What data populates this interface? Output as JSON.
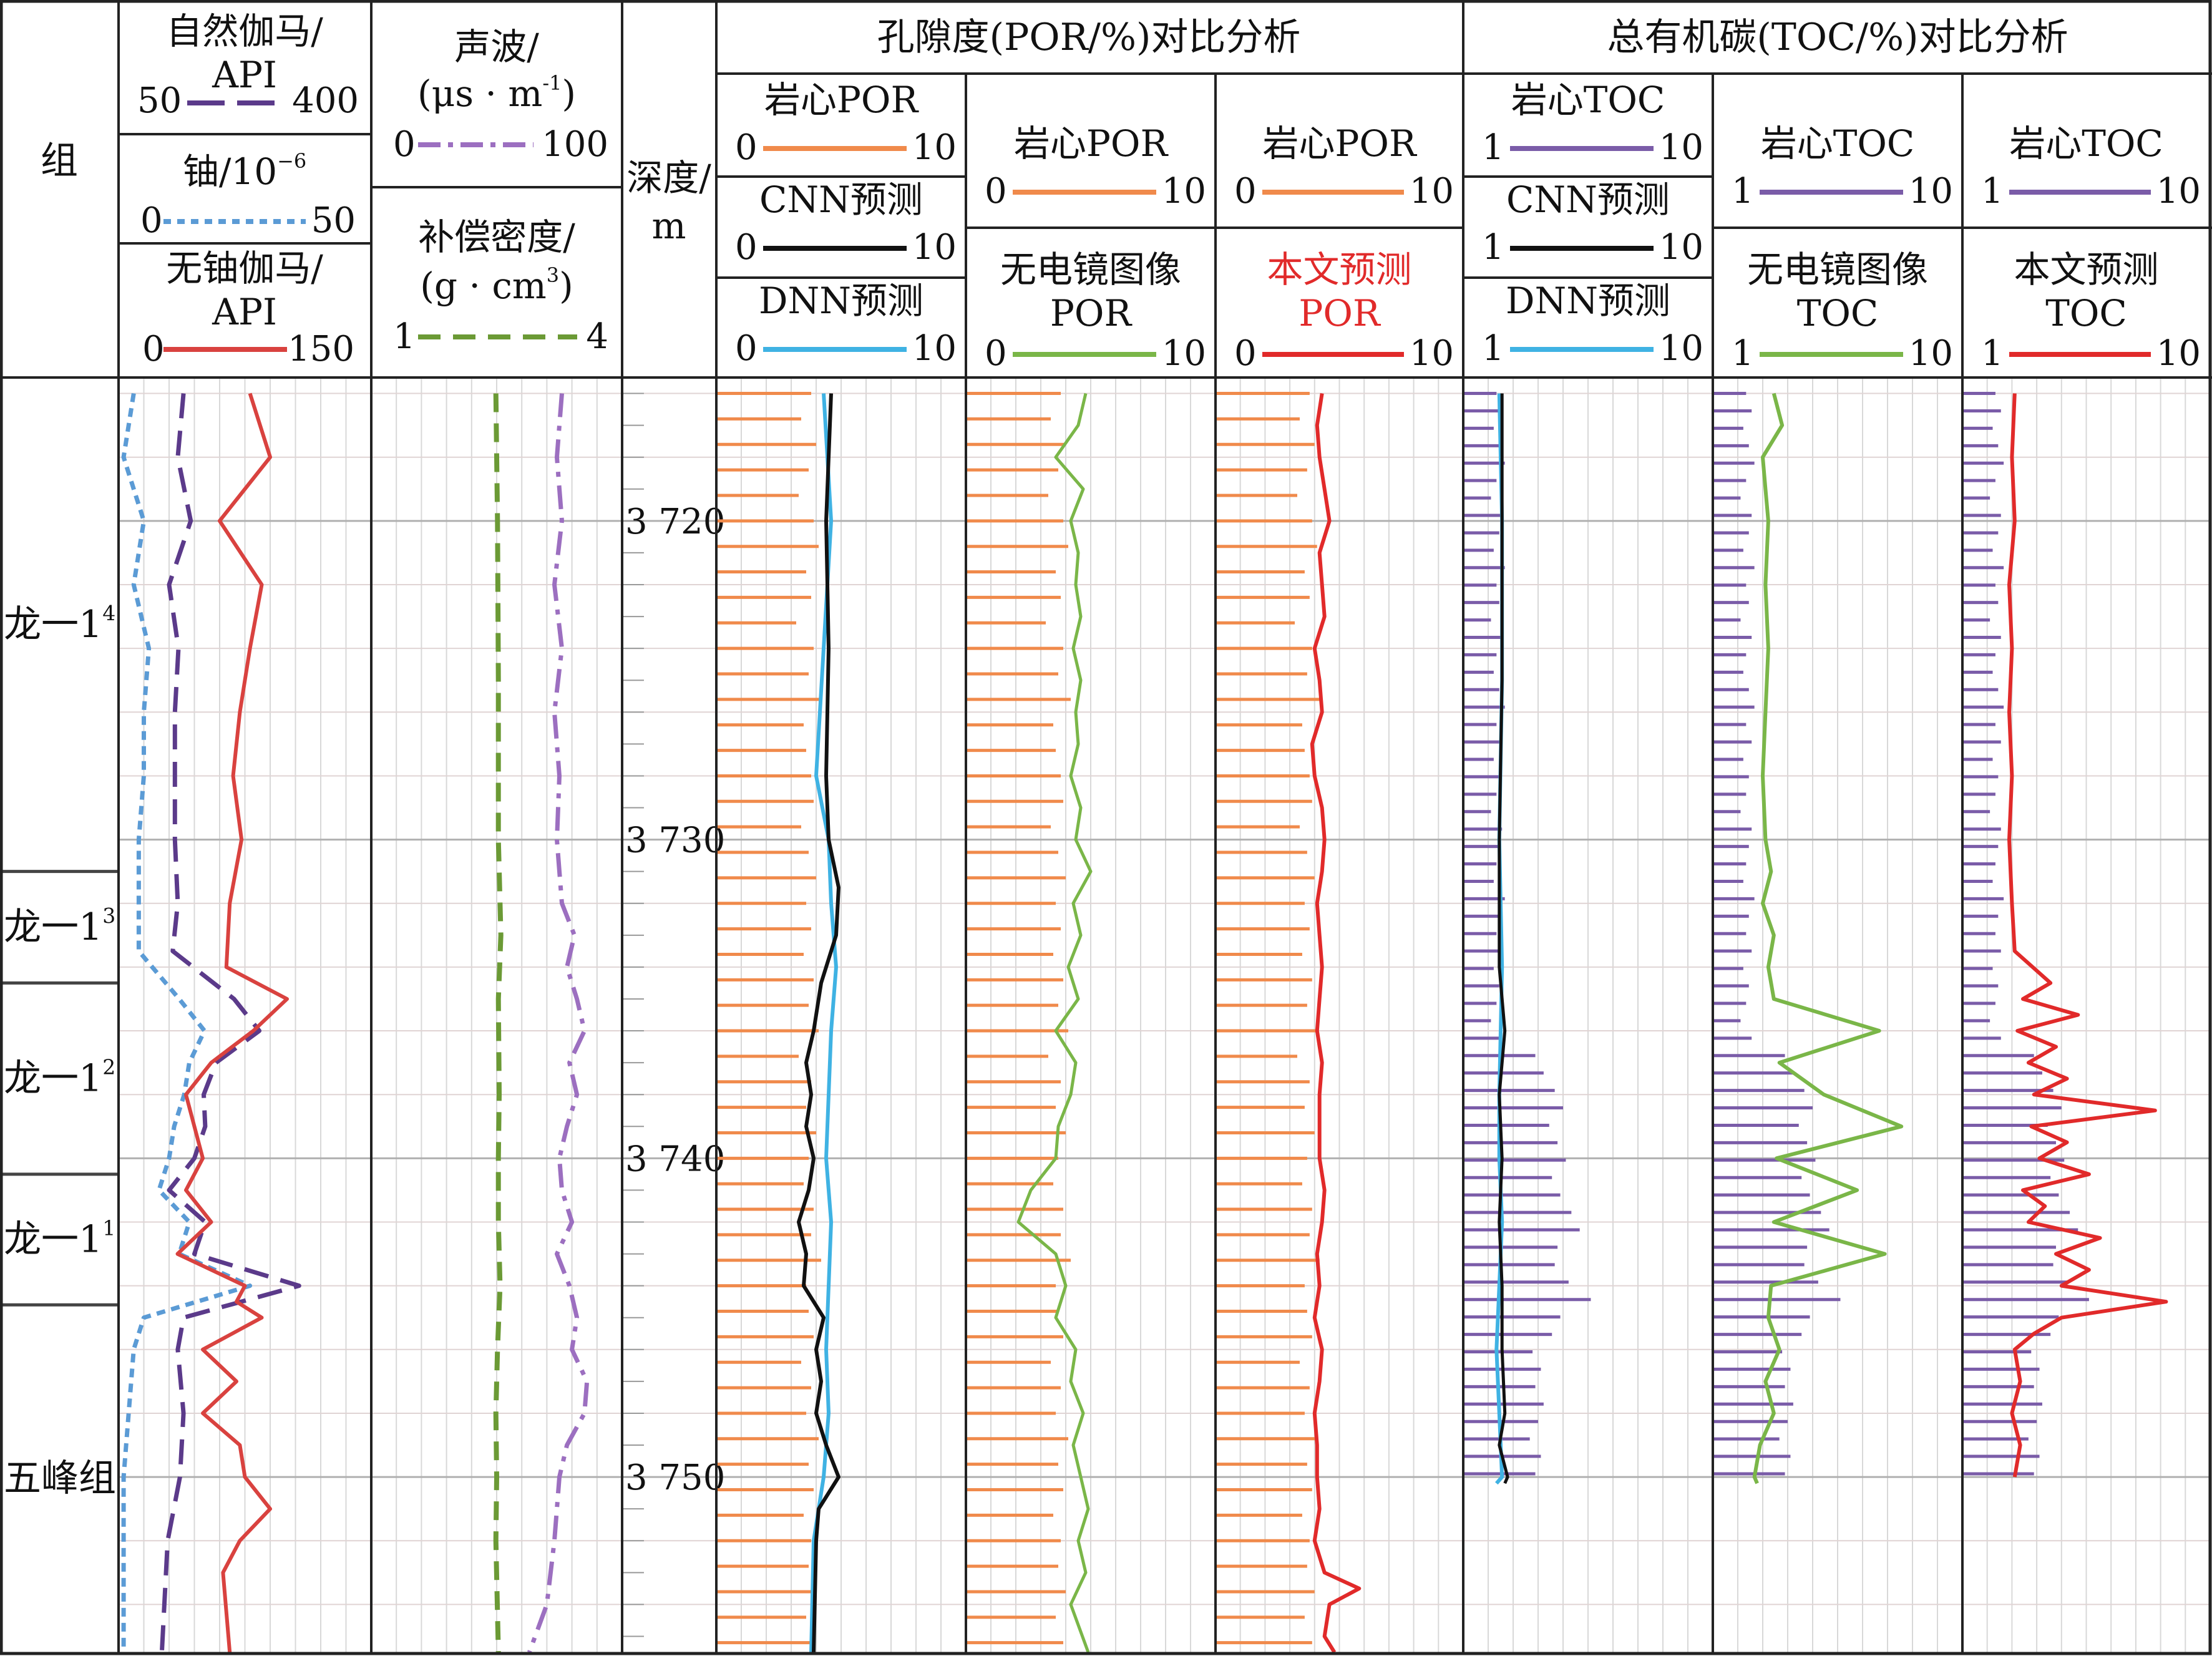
{
  "header": {
    "zone_col": "组",
    "depth_col": [
      "深度/",
      "m"
    ],
    "por_group": "孔隙度(POR/%)对比分析",
    "toc_group": "总有机碳(TOC/%)对比分析"
  },
  "track1": {
    "gr": {
      "label": [
        "自然伽马/",
        "API"
      ],
      "min": "50",
      "max": "400"
    },
    "u": {
      "label": "铀/10",
      "sup": "−6",
      "min": "0",
      "max": "50"
    },
    "kth": {
      "label": [
        "无铀伽马/",
        "API"
      ],
      "min": "0",
      "max": "150"
    }
  },
  "track2": {
    "ac": {
      "label": [
        "声波/",
        "(μs · m",
        ")"
      ],
      "sup": "-1",
      "min": "0",
      "max": "100"
    },
    "den": {
      "label": [
        "补偿密度/",
        "(g · cm",
        ")"
      ],
      "sup": "3",
      "min": "1",
      "max": "4"
    }
  },
  "por_tracks": [
    {
      "lines": [
        {
          "label": "岩心POR",
          "min": "0",
          "max": "10"
        },
        {
          "label": "CNN预测",
          "min": "0",
          "max": "10"
        },
        {
          "label": "DNN预测",
          "min": "0",
          "max": "10"
        }
      ]
    },
    {
      "lines": [
        {
          "label": "岩心POR",
          "min": "0",
          "max": "10"
        },
        {
          "label": [
            "无电镜图像",
            "POR"
          ],
          "min": "0",
          "max": "10"
        }
      ]
    },
    {
      "lines": [
        {
          "label": "岩心POR",
          "min": "0",
          "max": "10"
        },
        {
          "label": [
            "本文预测",
            "POR"
          ],
          "min": "0",
          "max": "10"
        }
      ]
    }
  ],
  "toc_tracks": [
    {
      "lines": [
        {
          "label": "岩心TOC",
          "min": "1",
          "max": "10"
        },
        {
          "label": "CNN预测",
          "min": "1",
          "max": "10"
        },
        {
          "label": "DNN预测",
          "min": "1",
          "max": "10"
        }
      ]
    },
    {
      "lines": [
        {
          "label": "岩心TOC",
          "min": "1",
          "max": "10"
        },
        {
          "label": [
            "无电镜图像",
            "TOC"
          ],
          "min": "1",
          "max": "10"
        }
      ]
    },
    {
      "lines": [
        {
          "label": "岩心TOC",
          "min": "1",
          "max": "10"
        },
        {
          "label": [
            "本文预测",
            "TOC"
          ],
          "min": "1",
          "max": "10"
        }
      ]
    }
  ],
  "zones": [
    {
      "name": "龙一1",
      "sup": "4",
      "top": 3715.5,
      "bottom": 3731.0
    },
    {
      "name": "龙一1",
      "sup": "3",
      "top": 3731.0,
      "bottom": 3734.5
    },
    {
      "name": "龙一1",
      "sup": "2",
      "top": 3734.5,
      "bottom": 3740.5
    },
    {
      "name": "龙一1",
      "sup": "1",
      "top": 3740.5,
      "bottom": 3744.6
    },
    {
      "name": "五峰组",
      "sup": "",
      "top": 3744.6,
      "bottom": 3755.5
    }
  ],
  "colors": {
    "gr": "#5b3a8a",
    "u": "#5b9bd5",
    "kth": "#d9423f",
    "ac": "#9c6fc0",
    "den": "#6b9a35",
    "core_por": "#f08a4b",
    "core_toc": "#7a5ca8",
    "cnn": "#111111",
    "dnn": "#3fb2e3",
    "noimg": "#7ab648",
    "ours": "#e12a2a",
    "red_label": "#e12a2a"
  },
  "chart_data": {
    "type": "line",
    "title": "",
    "ylabel": "深度/m",
    "depth_ticks": [
      "3 720",
      "3 730",
      "3 740",
      "3 750"
    ],
    "depth_tick_values": [
      3720,
      3730,
      3740,
      3750
    ],
    "ylim": [
      3715.5,
      3755.5
    ],
    "curves": {
      "gr": {
        "name": "自然伽马",
        "xlim": [
          50,
          400
        ],
        "depth": [
          3716,
          3718,
          3720,
          3722,
          3724,
          3726,
          3728,
          3730,
          3732,
          3733.5,
          3735,
          3736,
          3737,
          3738,
          3739,
          3740,
          3741,
          3742,
          3743,
          3744,
          3745,
          3746,
          3748,
          3750,
          3752,
          3755.5
        ],
        "values": [
          140,
          132,
          150,
          120,
          133,
          128,
          128,
          128,
          132,
          125,
          210,
          245,
          185,
          168,
          170,
          155,
          120,
          170,
          155,
          300,
          140,
          132,
          140,
          135,
          118,
          110
        ]
      },
      "u": {
        "name": "铀",
        "xlim": [
          0,
          50
        ],
        "depth": [
          3716,
          3718,
          3720,
          3722,
          3724,
          3726,
          3728,
          3730,
          3732,
          3733.5,
          3735,
          3736,
          3737,
          3738,
          3739,
          3740,
          3741,
          3742,
          3743,
          3744,
          3745,
          3746,
          3748,
          3750,
          3752,
          3755.5
        ],
        "values": [
          3,
          1,
          5,
          3,
          6,
          5,
          5,
          4,
          4,
          4,
          12,
          17,
          14,
          13,
          11,
          10,
          8,
          14,
          12,
          26,
          5,
          3,
          2,
          1,
          1,
          1
        ]
      },
      "kth": {
        "name": "无铀伽马",
        "xlim": [
          0,
          150
        ],
        "depth": [
          3716,
          3718,
          3720,
          3722,
          3724,
          3726,
          3728,
          3730,
          3732,
          3734,
          3735,
          3736,
          3737,
          3738,
          3739,
          3740,
          3741,
          3742,
          3743,
          3744,
          3744.5,
          3745,
          3746,
          3747,
          3748,
          3749,
          3750,
          3751,
          3752,
          3753,
          3755.5
        ],
        "values": [
          78,
          90,
          60,
          85,
          78,
          72,
          68,
          73,
          66,
          64,
          100,
          80,
          55,
          40,
          45,
          50,
          40,
          55,
          35,
          75,
          70,
          85,
          50,
          70,
          50,
          72,
          75,
          90,
          72,
          62,
          66
        ]
      },
      "ac": {
        "name": "声波",
        "xlim": [
          0,
          100
        ],
        "depth": [
          3716,
          3718,
          3720,
          3722,
          3724,
          3726,
          3728,
          3730,
          3732,
          3733,
          3734,
          3735,
          3736,
          3737,
          3738,
          3739,
          3740,
          3741,
          3742,
          3743,
          3744,
          3745,
          3746,
          3747,
          3748,
          3749,
          3750,
          3752,
          3754,
          3755.5
        ],
        "values": [
          76,
          74,
          76,
          73,
          76,
          73,
          75,
          74,
          76,
          81,
          78,
          82,
          85,
          79,
          82,
          78,
          75,
          76,
          80,
          74,
          79,
          82,
          80,
          86,
          85,
          78,
          75,
          73,
          70,
          63
        ]
      },
      "den": {
        "name": "补偿密度",
        "xlim": [
          1,
          4
        ],
        "depth": [
          3716,
          3720,
          3725,
          3730,
          3733,
          3735,
          3738,
          3740,
          3742,
          3744,
          3746,
          3748,
          3750,
          3752,
          3755.5
        ],
        "values": [
          2.49,
          2.51,
          2.52,
          2.52,
          2.55,
          2.52,
          2.53,
          2.52,
          2.52,
          2.54,
          2.51,
          2.49,
          2.5,
          2.49,
          2.52
        ]
      },
      "por_dnn": {
        "name": "DNN预测",
        "xlim": [
          0,
          10
        ],
        "depth": [
          3716,
          3720,
          3724,
          3728,
          3730,
          3732,
          3734,
          3736,
          3738,
          3740,
          3742,
          3744,
          3746,
          3748,
          3750,
          3752,
          3755.5
        ],
        "values": [
          4.3,
          4.6,
          4.3,
          4.0,
          4.5,
          4.6,
          4.8,
          4.6,
          4.5,
          4.4,
          4.6,
          4.5,
          4.4,
          4.5,
          4.3,
          3.9,
          3.8
        ]
      },
      "por_cnn": {
        "name": "CNN预测",
        "xlim": [
          0,
          10
        ],
        "depth": [
          3716,
          3720,
          3724,
          3728,
          3730,
          3731.5,
          3733,
          3734.5,
          3736,
          3737,
          3738,
          3739,
          3740,
          3741,
          3742,
          3743,
          3744,
          3745,
          3746,
          3747,
          3748,
          3749,
          3750,
          3751,
          3752,
          3755.5
        ],
        "values": [
          4.6,
          4.4,
          4.5,
          4.4,
          4.5,
          4.9,
          4.8,
          4.2,
          3.9,
          3.6,
          3.8,
          3.6,
          3.9,
          3.7,
          3.3,
          3.6,
          3.5,
          4.3,
          4.0,
          4.2,
          4.0,
          4.4,
          4.9,
          4.1,
          4.0,
          3.9
        ]
      },
      "por_noimg": {
        "name": "无电镜图像POR",
        "xlim": [
          0,
          10
        ],
        "depth": [
          3716,
          3717,
          3718,
          3719,
          3720,
          3721,
          3722,
          3723,
          3724,
          3725,
          3726,
          3727,
          3728,
          3729,
          3730,
          3731,
          3732,
          3733,
          3734,
          3735,
          3736,
          3737,
          3738,
          3739,
          3740,
          3741,
          3742,
          3743,
          3744,
          3745,
          3746,
          3747,
          3748,
          3749,
          3750,
          3751,
          3752,
          3753,
          3754,
          3755.5
        ],
        "values": [
          4.8,
          4.5,
          3.6,
          4.7,
          4.2,
          4.5,
          4.4,
          4.6,
          4.3,
          4.6,
          4.4,
          4.5,
          4.2,
          4.6,
          4.4,
          5.0,
          4.3,
          4.6,
          4.1,
          4.5,
          3.6,
          4.4,
          4.2,
          3.7,
          3.6,
          2.6,
          2.1,
          3.6,
          4.0,
          3.6,
          4.4,
          4.2,
          4.7,
          4.3,
          4.6,
          4.9,
          4.5,
          4.8,
          4.2,
          4.9
        ]
      },
      "por_ours": {
        "name": "本文预测POR",
        "xlim": [
          0,
          10
        ],
        "depth": [
          3716,
          3717,
          3718,
          3719,
          3720,
          3721,
          3722,
          3723,
          3724,
          3725,
          3726,
          3727,
          3728,
          3729,
          3730,
          3731,
          3732,
          3733,
          3734,
          3735,
          3736,
          3737,
          3738,
          3739,
          3740,
          3741,
          3742,
          3743,
          3744,
          3745,
          3746,
          3747,
          3748,
          3749,
          3750,
          3751,
          3752,
          3753,
          3753.5,
          3754,
          3755,
          3755.5
        ],
        "values": [
          4.3,
          4.1,
          4.2,
          4.4,
          4.6,
          4.2,
          4.3,
          4.4,
          4.0,
          4.2,
          4.3,
          3.9,
          4.0,
          4.3,
          4.4,
          4.3,
          4.1,
          4.2,
          4.3,
          4.2,
          4.1,
          4.3,
          4.2,
          4.2,
          4.2,
          4.4,
          4.3,
          4.1,
          4.2,
          4.0,
          4.3,
          4.2,
          4.0,
          4.1,
          4.1,
          4.2,
          4.0,
          4.4,
          5.8,
          4.6,
          4.4,
          4.8
        ]
      },
      "toc_dnn": {
        "name": "DNN预测",
        "xlim": [
          1,
          10
        ],
        "depth": [
          3716,
          3720,
          3725,
          3730,
          3734,
          3738,
          3740,
          3742,
          3744,
          3746,
          3748,
          3750,
          3750.2
        ],
        "values": [
          2.3,
          2.4,
          2.4,
          2.3,
          2.4,
          2.3,
          2.3,
          2.4,
          2.3,
          2.2,
          2.3,
          2.4,
          2.2
        ]
      },
      "toc_cnn": {
        "name": "CNN预测",
        "xlim": [
          1,
          10
        ],
        "depth": [
          3716,
          3720,
          3725,
          3730,
          3734,
          3736,
          3738,
          3740,
          3742,
          3744,
          3746,
          3748,
          3749,
          3750,
          3750.2
        ],
        "values": [
          2.4,
          2.4,
          2.4,
          2.3,
          2.3,
          2.5,
          2.3,
          2.4,
          2.3,
          2.4,
          2.4,
          2.5,
          2.3,
          2.6,
          2.5
        ]
      },
      "toc_noimg": {
        "name": "无电镜图像TOC",
        "xlim": [
          1,
          10
        ],
        "depth": [
          3716,
          3717,
          3718,
          3719,
          3720,
          3722,
          3724,
          3726,
          3728,
          3730,
          3731,
          3732,
          3733,
          3734,
          3735,
          3736,
          3737,
          3738,
          3739,
          3740,
          3741,
          3742,
          3743,
          3744,
          3745,
          3746,
          3747,
          3748,
          3749,
          3750,
          3750.2
        ],
        "values": [
          3.2,
          3.5,
          2.8,
          2.9,
          3.0,
          2.9,
          3.0,
          2.9,
          2.8,
          2.9,
          3.1,
          2.8,
          3.2,
          3.0,
          3.2,
          7.0,
          3.4,
          5.0,
          7.8,
          3.3,
          6.2,
          3.2,
          7.2,
          3.1,
          3.0,
          3.4,
          2.9,
          3.2,
          2.7,
          2.5,
          2.6
        ]
      },
      "toc_ours": {
        "name": "本文预测TOC",
        "xlim": [
          1,
          10
        ],
        "depth": [
          3716,
          3718,
          3720,
          3722,
          3724,
          3726,
          3728,
          3730,
          3732,
          3733.5,
          3734.5,
          3735,
          3735.5,
          3736,
          3736.5,
          3737,
          3737.5,
          3738,
          3738.5,
          3739,
          3739.5,
          3740,
          3740.5,
          3741,
          3741.5,
          3742,
          3742.5,
          3743,
          3743.5,
          3744,
          3744.5,
          3745,
          3745.5,
          3746,
          3747,
          3748,
          3749,
          3750
        ],
        "values": [
          2.9,
          2.8,
          2.9,
          2.7,
          2.8,
          2.7,
          2.8,
          2.7,
          2.8,
          2.9,
          4.2,
          3.2,
          5.2,
          3.0,
          4.4,
          3.4,
          4.8,
          3.6,
          8.0,
          3.5,
          4.8,
          3.8,
          5.6,
          3.2,
          4.0,
          3.4,
          6.0,
          4.4,
          5.6,
          4.6,
          8.4,
          4.6,
          3.6,
          2.9,
          3.1,
          2.8,
          3.1,
          2.9
        ]
      }
    },
    "core_por_series": {
      "name": "岩心POR",
      "xlim": [
        0,
        10
      ],
      "values": [
        3.8,
        3.4,
        4.0,
        3.7,
        3.3,
        3.9,
        4.1,
        3.6,
        3.8,
        3.2,
        3.9,
        3.7,
        4.2,
        3.5,
        3.6,
        3.8,
        3.9,
        3.4,
        3.7,
        4.0,
        3.6,
        3.8,
        3.5,
        3.9,
        3.7,
        4.1,
        3.3,
        3.8,
        3.6,
        4.0,
        3.7,
        3.5,
        3.9,
        3.8,
        4.2,
        3.6,
        3.7,
        3.9,
        3.4,
        3.8,
        3.6,
        4.1,
        3.7,
        3.9,
        3.5,
        3.8,
        3.7,
        4.0,
        3.6,
        3.9
      ]
    },
    "core_toc_series": {
      "name": "岩心TOC",
      "xlim": [
        1,
        10
      ],
      "values": [
        2.2,
        2.4,
        2.1,
        2.3,
        2.5,
        2.2,
        2.0,
        2.4,
        2.3,
        2.1,
        2.5,
        2.2,
        2.3,
        2.0,
        2.4,
        2.2,
        2.1,
        2.3,
        2.5,
        2.2,
        2.4,
        2.1,
        2.3,
        2.2,
        2.0,
        2.4,
        2.3,
        2.2,
        2.1,
        2.5,
        2.3,
        2.2,
        2.4,
        2.1,
        2.3,
        2.2,
        2.0,
        2.4,
        3.6,
        3.9,
        4.3,
        4.6,
        4.1,
        4.4,
        4.7,
        4.2,
        4.5,
        4.9,
        5.2,
        4.4,
        4.3,
        4.8,
        5.6,
        4.5,
        4.2,
        3.5,
        3.8,
        3.6,
        3.9,
        3.7,
        3.4,
        3.8,
        3.6
      ]
    }
  }
}
